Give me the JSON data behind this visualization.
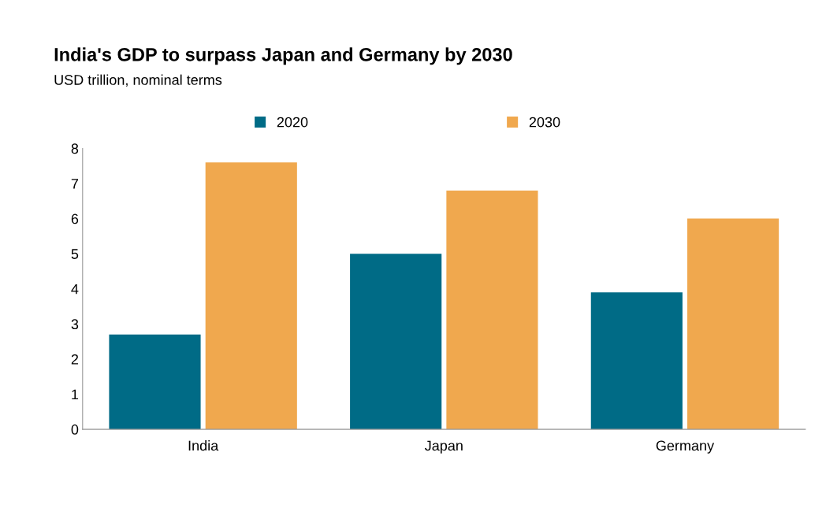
{
  "chart_data": {
    "type": "bar",
    "title": "India's GDP to surpass Japan and Germany by 2030",
    "subtitle": "USD trillion, nominal terms",
    "categories": [
      "India",
      "Japan",
      "Germany"
    ],
    "series": [
      {
        "name": "2020",
        "color": "#006b86",
        "values": [
          2.7,
          5.0,
          3.9
        ]
      },
      {
        "name": "2030",
        "color": "#f0a84e",
        "values": [
          7.6,
          6.8,
          6.0
        ]
      }
    ],
    "ylim": [
      0,
      8
    ],
    "yticks": [
      0,
      1,
      2,
      3,
      4,
      5,
      6,
      7,
      8
    ],
    "grid": false,
    "legend": "top"
  }
}
